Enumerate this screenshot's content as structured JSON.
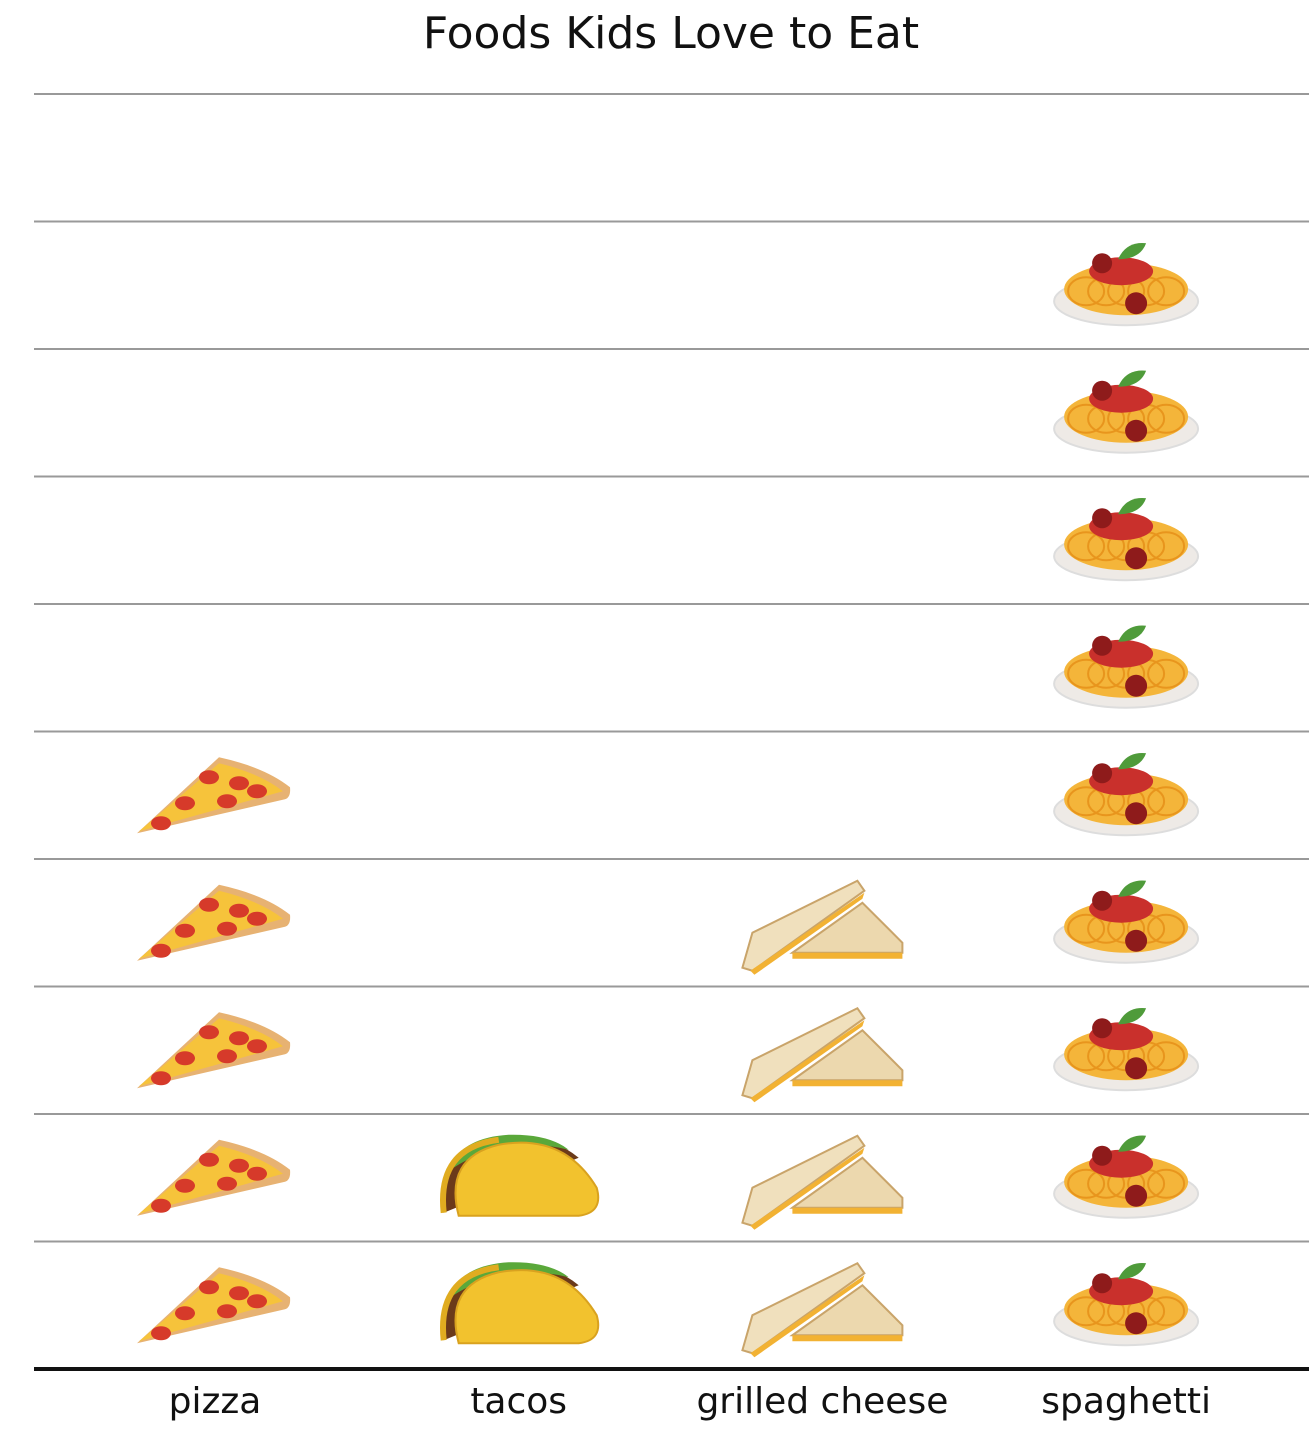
{
  "chart_data": {
    "type": "pictograph",
    "title": "Foods Kids Love to Eat",
    "categories": [
      "pizza",
      "tacos",
      "grilled cheese",
      "spaghetti"
    ],
    "values": [
      5,
      2,
      4,
      9
    ],
    "ylim": [
      0,
      10
    ],
    "grid": true
  }
}
